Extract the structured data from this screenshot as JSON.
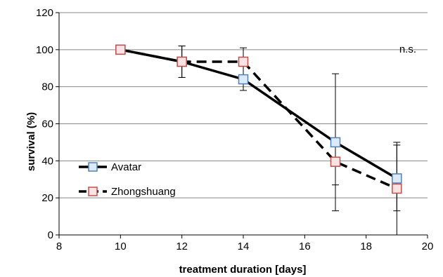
{
  "chart_data": {
    "type": "line",
    "title": "",
    "xlabel": "treatment duration [days]",
    "ylabel": "survival (%)",
    "xlim": [
      8,
      20
    ],
    "ylim": [
      0,
      120
    ],
    "x_ticks": [
      "8",
      "10",
      "12",
      "14",
      "16",
      "18",
      "20"
    ],
    "y_ticks": [
      "0",
      "20",
      "40",
      "60",
      "80",
      "100",
      "120"
    ],
    "grid": "horizontal",
    "legend_position": "lower-left",
    "annotation": "n.s.",
    "series": [
      {
        "name": "Avatar",
        "line_style": "solid",
        "marker_fill": "#dce9f7",
        "marker_edge": "#4f81bd",
        "x": [
          10,
          12,
          14,
          17,
          19
        ],
        "y": [
          100,
          93.5,
          84,
          50,
          30.5
        ],
        "err_low": [
          100,
          85,
          78,
          13,
          0
        ],
        "err_high": [
          100,
          102,
          91,
          87,
          50
        ]
      },
      {
        "name": "Zhongshuang",
        "line_style": "dashed",
        "marker_fill": "#fbe3e3",
        "marker_edge": "#c0504d",
        "x": [
          10,
          12,
          14,
          17,
          19
        ],
        "y": [
          100,
          93.5,
          93.5,
          39.5,
          25
        ],
        "err_low": [
          100,
          85,
          86,
          27,
          13
        ],
        "err_high": [
          100,
          102,
          101,
          52,
          48.5
        ]
      }
    ]
  },
  "colors": {
    "line": "#000000",
    "grid": "#888888"
  }
}
